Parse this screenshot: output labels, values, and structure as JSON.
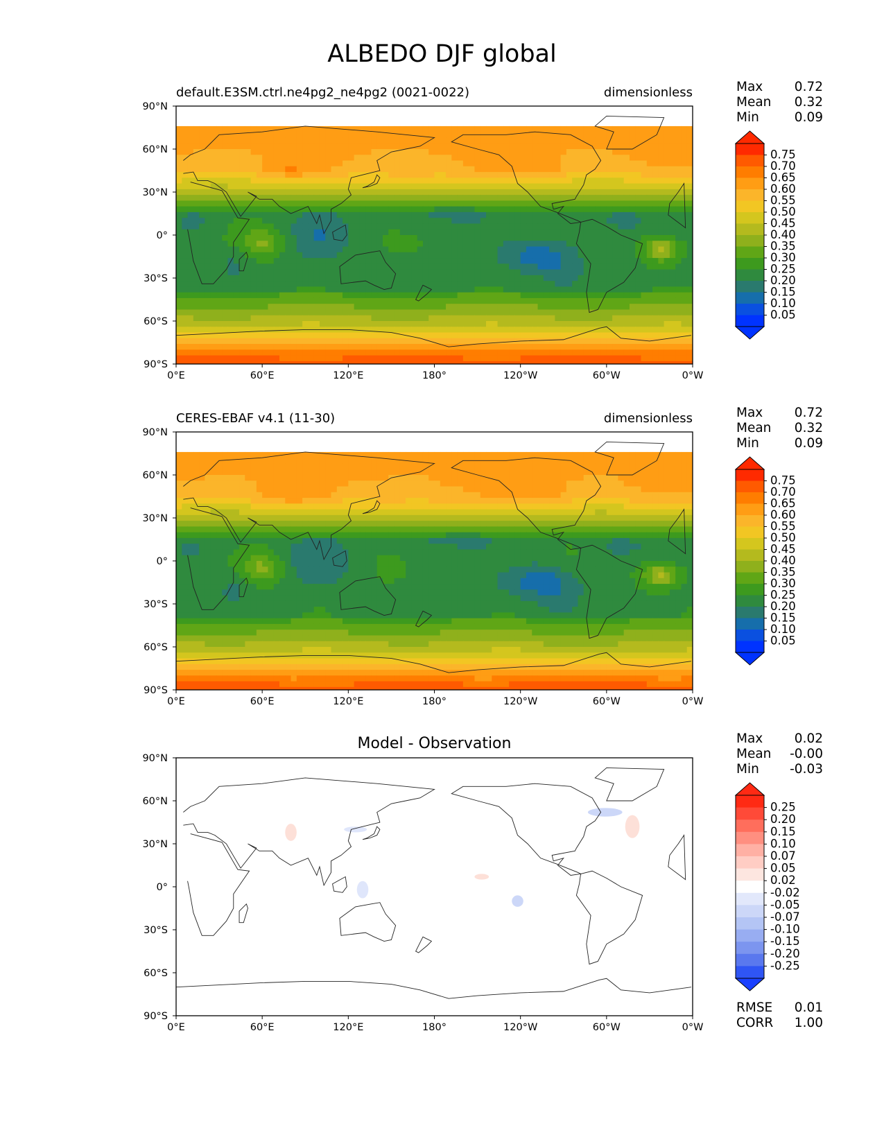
{
  "figure": {
    "title": "ALBEDO DJF global"
  },
  "panels": [
    {
      "title_left": "default.E3SM.ctrl.ne4pg2_ne4pg2 (0021-0022)",
      "title_center": "",
      "title_right": "dimensionless",
      "stats": [
        {
          "label": "Max",
          "value": "0.72"
        },
        {
          "label": "Mean",
          "value": "0.32"
        },
        {
          "label": "Min",
          "value": "0.09"
        }
      ],
      "colorbar": {
        "ticks": [
          "0.75",
          "0.70",
          "0.65",
          "0.60",
          "0.55",
          "0.50",
          "0.45",
          "0.40",
          "0.35",
          "0.30",
          "0.25",
          "0.20",
          "0.15",
          "0.10",
          "0.05"
        ],
        "colors": [
          "#ff2a00",
          "#ff5a00",
          "#ff7d00",
          "#ff9d14",
          "#fbb52a",
          "#f2c623",
          "#d4c61e",
          "#b4ba1e",
          "#8fb01c",
          "#60a616",
          "#3d9a1e",
          "#2f8a3e",
          "#2a7a6e",
          "#166eab",
          "#0a50e0",
          "#0033ff"
        ],
        "extend_high": "#ff2a00",
        "extend_low": "#0033ff"
      },
      "extra_stats": []
    },
    {
      "title_left": "CERES-EBAF v4.1 (11-30)",
      "title_center": "",
      "title_right": "dimensionless",
      "stats": [
        {
          "label": "Max",
          "value": "0.72"
        },
        {
          "label": "Mean",
          "value": "0.32"
        },
        {
          "label": "Min",
          "value": "0.09"
        }
      ],
      "colorbar": {
        "ticks": [
          "0.75",
          "0.70",
          "0.65",
          "0.60",
          "0.55",
          "0.50",
          "0.45",
          "0.40",
          "0.35",
          "0.30",
          "0.25",
          "0.20",
          "0.15",
          "0.10",
          "0.05"
        ],
        "colors": [
          "#ff2a00",
          "#ff5a00",
          "#ff7d00",
          "#ff9d14",
          "#fbb52a",
          "#f2c623",
          "#d4c61e",
          "#b4ba1e",
          "#8fb01c",
          "#60a616",
          "#3d9a1e",
          "#2f8a3e",
          "#2a7a6e",
          "#166eab",
          "#0a50e0",
          "#0033ff"
        ],
        "extend_high": "#ff2a00",
        "extend_low": "#0033ff"
      },
      "extra_stats": []
    },
    {
      "title_left": "",
      "title_center": "Model - Observation",
      "title_right": "",
      "stats": [
        {
          "label": "Max",
          "value": "0.02"
        },
        {
          "label": "Mean",
          "value": "-0.00"
        },
        {
          "label": "Min",
          "value": "-0.03"
        }
      ],
      "colorbar": {
        "ticks": [
          "0.25",
          "0.20",
          "0.15",
          "0.10",
          "0.07",
          "0.05",
          "0.02",
          "-0.02",
          "-0.05",
          "-0.07",
          "-0.10",
          "-0.15",
          "-0.20",
          "-0.25"
        ],
        "colors": [
          "#ff2a14",
          "#ff4a38",
          "#ff6e5c",
          "#ff8f80",
          "#ffb0a4",
          "#ffcdc4",
          "#fde6e0",
          "#ffffff",
          "#e2e8fb",
          "#ccd7f8",
          "#b4c5f5",
          "#98adf2",
          "#7c95ef",
          "#5a78ee",
          "#2f55f4"
        ],
        "extend_high": "#ff2a14",
        "extend_low": "#1a40ff"
      },
      "extra_stats": [
        {
          "label": "RMSE",
          "value": "0.01"
        },
        {
          "label": "CORR",
          "value": "1.00"
        }
      ]
    }
  ],
  "chart_data": {
    "type": "heatmap",
    "title": "ALBEDO DJF global",
    "variable": "ALBEDO",
    "season": "DJF",
    "units": "dimensionless",
    "xlim": [
      0,
      360
    ],
    "ylim": [
      -90,
      90
    ],
    "x_ticks": [
      "0°E",
      "60°E",
      "120°E",
      "180°",
      "120°W",
      "60°W",
      "0°W"
    ],
    "y_ticks": [
      "90°N",
      "60°N",
      "30°N",
      "0°",
      "30°S",
      "60°S",
      "90°S"
    ],
    "lat": [
      90,
      75,
      60,
      45,
      30,
      15,
      0,
      -15,
      -30,
      -45,
      -60,
      -75,
      -90
    ],
    "fields": [
      {
        "name": "default.E3SM.ctrl.ne4pg2_ne4pg2 (0021-0022)",
        "zonal_mean_albedo": [
          null,
          0.62,
          0.58,
          0.52,
          0.36,
          0.26,
          0.22,
          0.24,
          0.24,
          0.27,
          0.4,
          0.58,
          0.68
        ],
        "max": 0.72,
        "mean": 0.32,
        "min": 0.09
      },
      {
        "name": "CERES-EBAF v4.1 (11-30)",
        "zonal_mean_albedo": [
          null,
          0.62,
          0.58,
          0.52,
          0.36,
          0.26,
          0.22,
          0.24,
          0.24,
          0.27,
          0.4,
          0.58,
          0.68
        ],
        "max": 0.72,
        "mean": 0.32,
        "min": 0.09
      },
      {
        "name": "Model - Observation",
        "zonal_mean_difference": [
          0,
          0,
          0,
          0,
          0,
          0,
          0,
          0,
          0,
          0,
          0,
          0,
          0
        ],
        "max": 0.02,
        "mean": -0.0,
        "min": -0.03,
        "rmse": 0.01,
        "corr": 1.0
      }
    ]
  }
}
